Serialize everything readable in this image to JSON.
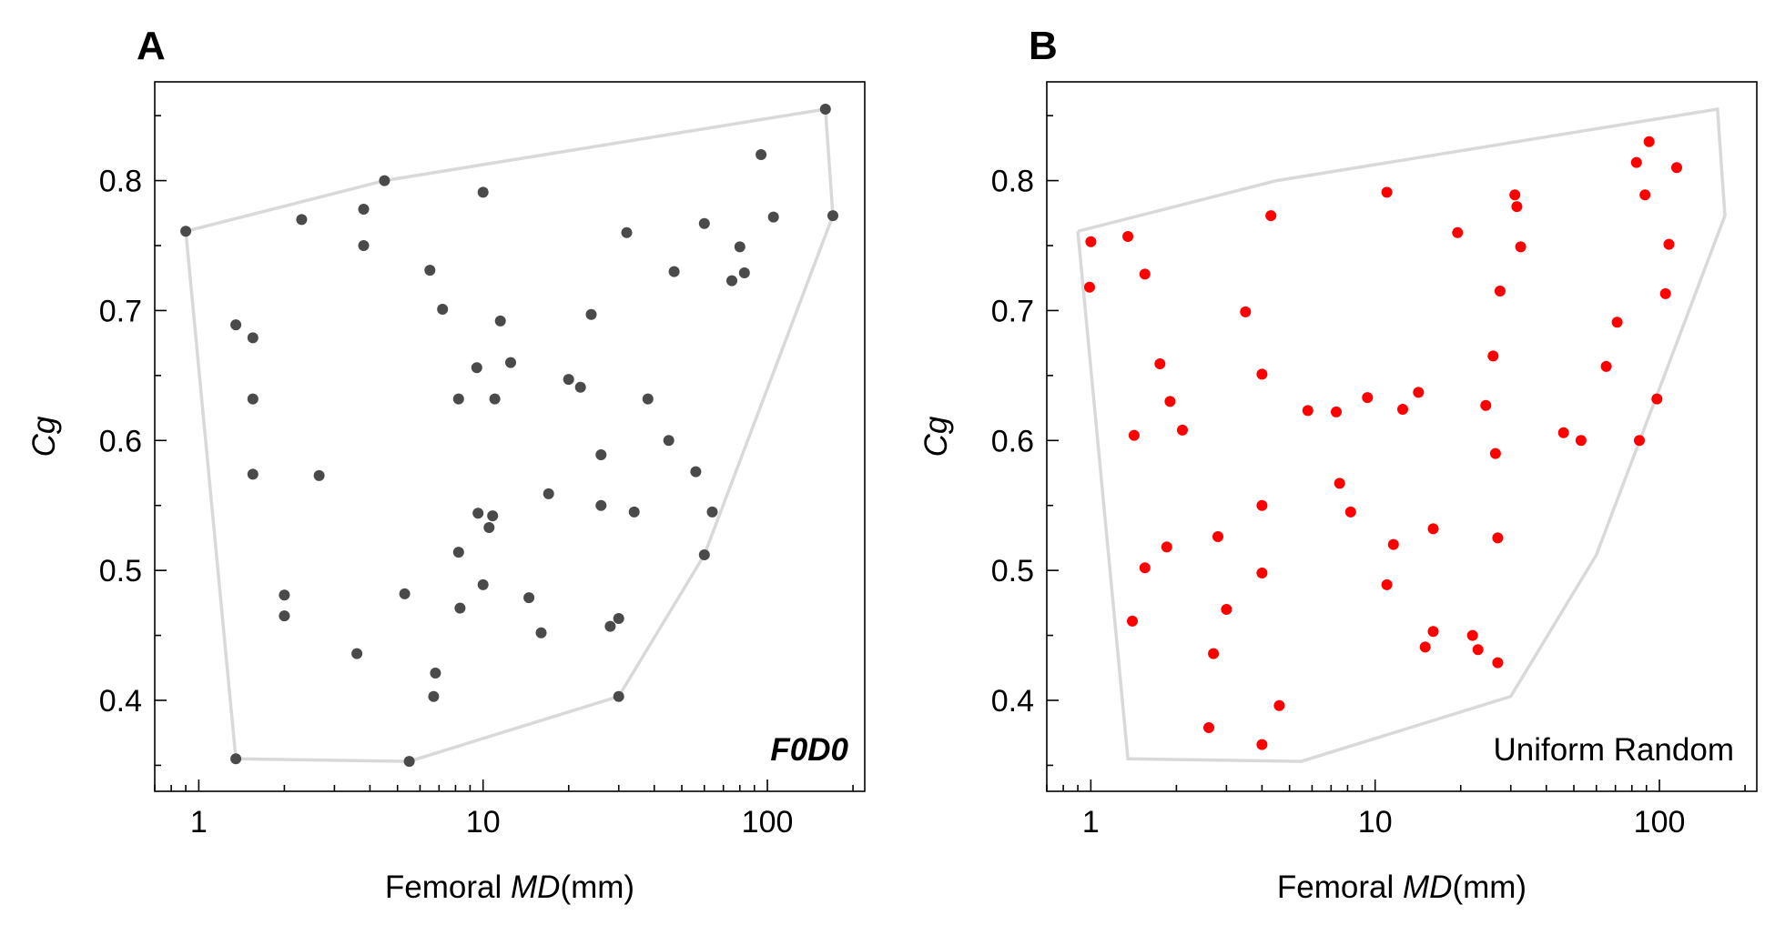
{
  "chart_data": [
    {
      "type": "scatter",
      "panel_label": "A",
      "xlabel_prefix": "Femoral ",
      "xlabel_italic": "MD",
      "xlabel_suffix": "(mm)",
      "ylabel": "Cg",
      "xscale": "log",
      "xlim": [
        0.7,
        220
      ],
      "ylim": [
        0.33,
        0.876
      ],
      "xticks": [
        1,
        10,
        100
      ],
      "xtick_labels": [
        "1",
        "10",
        "100"
      ],
      "yticks": [
        0.4,
        0.5,
        0.6,
        0.7,
        0.8
      ],
      "ytick_labels": [
        "0.4",
        "0.5",
        "0.6",
        "0.7",
        "0.8"
      ],
      "annotation": "F0D0",
      "annotation_style": "bold-italic",
      "point_color": "#4a4a4a",
      "hull_color": "#d9d9d9",
      "hull": [
        [
          0.9,
          0.761
        ],
        [
          4.5,
          0.8
        ],
        [
          160,
          0.855
        ],
        [
          170,
          0.773
        ],
        [
          60,
          0.512
        ],
        [
          30,
          0.403
        ],
        [
          5.5,
          0.353
        ],
        [
          1.35,
          0.355
        ],
        [
          0.9,
          0.761
        ]
      ],
      "points": [
        [
          0.9,
          0.761
        ],
        [
          4.5,
          0.8
        ],
        [
          160,
          0.855
        ],
        [
          170,
          0.773
        ],
        [
          1.35,
          0.355
        ],
        [
          5.5,
          0.353
        ],
        [
          30,
          0.403
        ],
        [
          60,
          0.512
        ],
        [
          2.3,
          0.77
        ],
        [
          3.8,
          0.778
        ],
        [
          3.8,
          0.75
        ],
        [
          10,
          0.791
        ],
        [
          6.5,
          0.731
        ],
        [
          7.2,
          0.701
        ],
        [
          11.5,
          0.692
        ],
        [
          12.5,
          0.66
        ],
        [
          9.5,
          0.656
        ],
        [
          8.2,
          0.632
        ],
        [
          11,
          0.632
        ],
        [
          20,
          0.647
        ],
        [
          22,
          0.641
        ],
        [
          24,
          0.697
        ],
        [
          32,
          0.76
        ],
        [
          47,
          0.73
        ],
        [
          60,
          0.767
        ],
        [
          95,
          0.82
        ],
        [
          105,
          0.772
        ],
        [
          80,
          0.749
        ],
        [
          83,
          0.729
        ],
        [
          75,
          0.723
        ],
        [
          1.35,
          0.689
        ],
        [
          1.55,
          0.679
        ],
        [
          1.55,
          0.632
        ],
        [
          1.55,
          0.574
        ],
        [
          2.65,
          0.573
        ],
        [
          38,
          0.632
        ],
        [
          45,
          0.6
        ],
        [
          56,
          0.576
        ],
        [
          64,
          0.545
        ],
        [
          34,
          0.545
        ],
        [
          26,
          0.589
        ],
        [
          26,
          0.55
        ],
        [
          17,
          0.559
        ],
        [
          9.6,
          0.544
        ],
        [
          10.8,
          0.542
        ],
        [
          10.5,
          0.533
        ],
        [
          8.2,
          0.514
        ],
        [
          10,
          0.489
        ],
        [
          8.3,
          0.471
        ],
        [
          5.3,
          0.482
        ],
        [
          14.5,
          0.479
        ],
        [
          16,
          0.452
        ],
        [
          28,
          0.457
        ],
        [
          30,
          0.463
        ],
        [
          2.0,
          0.481
        ],
        [
          2.0,
          0.465
        ],
        [
          3.6,
          0.436
        ],
        [
          6.8,
          0.421
        ],
        [
          6.7,
          0.403
        ]
      ]
    },
    {
      "type": "scatter",
      "panel_label": "B",
      "xlabel_prefix": "Femoral ",
      "xlabel_italic": "MD",
      "xlabel_suffix": "(mm)",
      "ylabel": "Cg",
      "xscale": "log",
      "xlim": [
        0.7,
        220
      ],
      "ylim": [
        0.33,
        0.876
      ],
      "xticks": [
        1,
        10,
        100
      ],
      "xtick_labels": [
        "1",
        "10",
        "100"
      ],
      "yticks": [
        0.4,
        0.5,
        0.6,
        0.7,
        0.8
      ],
      "ytick_labels": [
        "0.4",
        "0.5",
        "0.6",
        "0.7",
        "0.8"
      ],
      "annotation": "Uniform Random",
      "annotation_style": "normal",
      "point_color": "#ff0000",
      "hull_color": "#d9d9d9",
      "hull": [
        [
          0.9,
          0.761
        ],
        [
          4.5,
          0.8
        ],
        [
          160,
          0.855
        ],
        [
          170,
          0.773
        ],
        [
          60,
          0.512
        ],
        [
          30,
          0.403
        ],
        [
          5.5,
          0.353
        ],
        [
          1.35,
          0.355
        ],
        [
          0.9,
          0.761
        ]
      ],
      "points": [
        [
          1.0,
          0.753
        ],
        [
          0.99,
          0.718
        ],
        [
          1.35,
          0.757
        ],
        [
          1.55,
          0.728
        ],
        [
          1.75,
          0.659
        ],
        [
          1.9,
          0.63
        ],
        [
          2.1,
          0.608
        ],
        [
          1.42,
          0.604
        ],
        [
          1.55,
          0.502
        ],
        [
          1.85,
          0.518
        ],
        [
          1.4,
          0.461
        ],
        [
          2.8,
          0.526
        ],
        [
          3.0,
          0.47
        ],
        [
          2.7,
          0.436
        ],
        [
          2.6,
          0.379
        ],
        [
          3.5,
          0.699
        ],
        [
          4.3,
          0.773
        ],
        [
          4.0,
          0.651
        ],
        [
          4.0,
          0.55
        ],
        [
          4.0,
          0.498
        ],
        [
          4.6,
          0.396
        ],
        [
          4.0,
          0.366
        ],
        [
          5.8,
          0.623
        ],
        [
          7.3,
          0.622
        ],
        [
          9.4,
          0.633
        ],
        [
          12.5,
          0.624
        ],
        [
          14.2,
          0.637
        ],
        [
          11,
          0.791
        ],
        [
          19.5,
          0.76
        ],
        [
          7.5,
          0.567
        ],
        [
          8.2,
          0.545
        ],
        [
          11.6,
          0.52
        ],
        [
          11,
          0.489
        ],
        [
          16,
          0.532
        ],
        [
          15,
          0.441
        ],
        [
          16,
          0.453
        ],
        [
          22,
          0.45
        ],
        [
          23,
          0.439
        ],
        [
          27,
          0.429
        ],
        [
          24.5,
          0.627
        ],
        [
          26.5,
          0.59
        ],
        [
          27,
          0.525
        ],
        [
          26,
          0.665
        ],
        [
          27.5,
          0.715
        ],
        [
          31,
          0.789
        ],
        [
          31.5,
          0.78
        ],
        [
          32.5,
          0.749
        ],
        [
          46,
          0.606
        ],
        [
          53,
          0.6
        ],
        [
          65,
          0.657
        ],
        [
          71,
          0.691
        ],
        [
          85,
          0.6
        ],
        [
          98,
          0.632
        ],
        [
          105,
          0.713
        ],
        [
          108,
          0.751
        ],
        [
          115,
          0.81
        ],
        [
          83,
          0.814
        ],
        [
          89,
          0.789
        ],
        [
          92,
          0.83
        ]
      ]
    }
  ]
}
